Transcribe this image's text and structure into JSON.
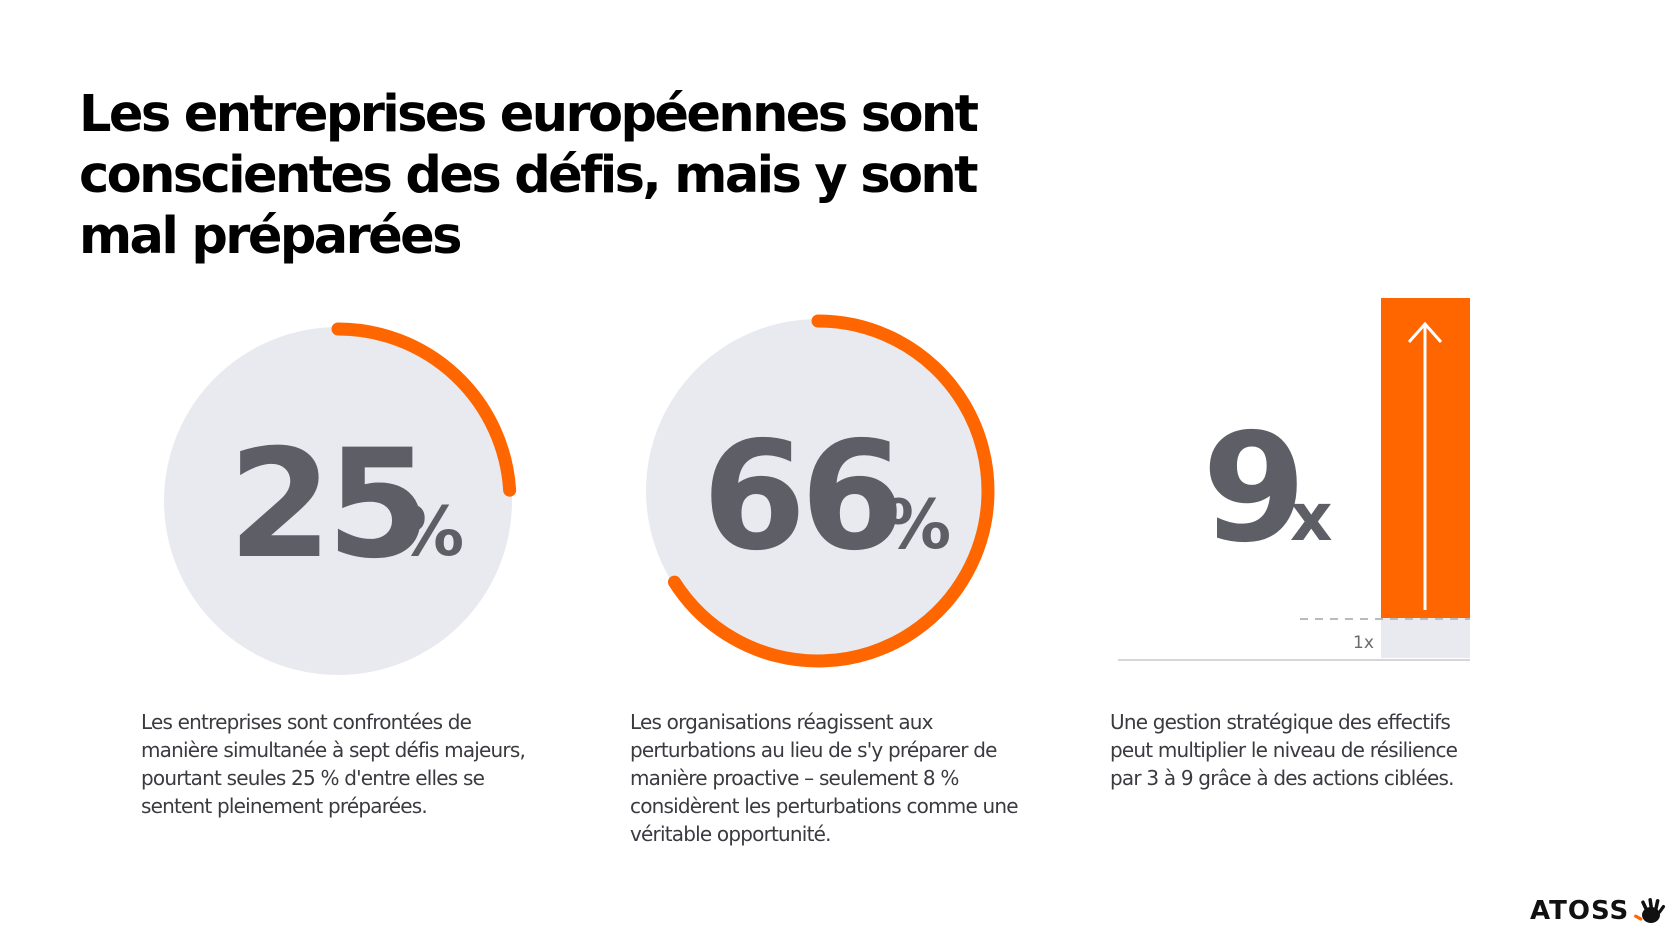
{
  "title": "Les entreprises européennes sont conscientes des défis, mais y sont mal préparées",
  "accent_color": "#ff6600",
  "circle_color": "#e8eaf0",
  "stats": [
    {
      "value": "25",
      "unit": "%",
      "fill_fraction": 0.25,
      "description": "Les entreprises sont confrontées de manière simultanée à sept défis majeurs, pourtant seules 25 % d'entre elles se sentent pleinement préparées."
    },
    {
      "value": "66",
      "unit": "%",
      "fill_fraction": 0.66,
      "description": "Les organisations réagissent aux perturbations au lieu de s'y préparer de manière proactive – seulement 8 % considèrent les perturbations comme une véritable opportunité."
    },
    {
      "value": "9",
      "unit": "x",
      "baseline_label": "1x",
      "description": "Une gestion stratégique des effectifs peut multiplier le niveau de résilience par 3 à 9 grâce à des actions ciblées."
    }
  ],
  "logo": {
    "text": "ATOSS",
    "icon": "hand-icon"
  }
}
